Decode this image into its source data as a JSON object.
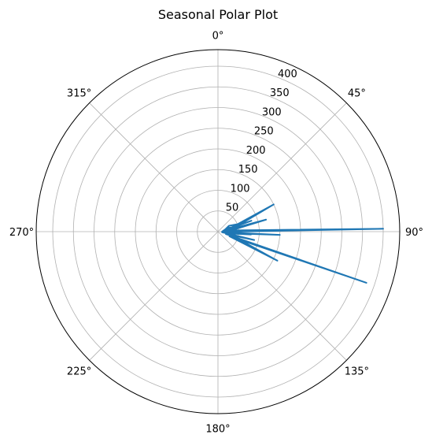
{
  "chart_data": {
    "type": "line",
    "projection": "polar",
    "title": "Seasonal Polar Plot",
    "theta_zero_location": "N",
    "theta_direction": "clockwise",
    "angle_ticks": [
      {
        "deg": 0,
        "label": "0°"
      },
      {
        "deg": 45,
        "label": "45°"
      },
      {
        "deg": 90,
        "label": "90°"
      },
      {
        "deg": 135,
        "label": "135°"
      },
      {
        "deg": 180,
        "label": "180°"
      },
      {
        "deg": 225,
        "label": "225°"
      },
      {
        "deg": 270,
        "label": "270°"
      },
      {
        "deg": 315,
        "label": "315°"
      }
    ],
    "radial_ticks": [
      {
        "value": 50,
        "label": "50"
      },
      {
        "value": 100,
        "label": "100"
      },
      {
        "value": 150,
        "label": "150"
      },
      {
        "value": 200,
        "label": "200"
      },
      {
        "value": 250,
        "label": "250"
      },
      {
        "value": 300,
        "label": "300"
      },
      {
        "value": 350,
        "label": "350"
      },
      {
        "value": 400,
        "label": "400"
      }
    ],
    "rlim": [
      0,
      440
    ],
    "radial_label_angle_deg": 22.5,
    "grid": true,
    "series": [
      {
        "color": "#1f77b4",
        "points": [
          {
            "theta": 90,
            "r": 10
          },
          {
            "theta": 68,
            "r": 25
          },
          {
            "theta": 75,
            "r": 40
          },
          {
            "theta": 80,
            "r": 15
          },
          {
            "theta": 62,
            "r": 30
          },
          {
            "theta": 70,
            "r": 55
          },
          {
            "theta": 77,
            "r": 20
          },
          {
            "theta": 72,
            "r": 85
          },
          {
            "theta": 85,
            "r": 12
          },
          {
            "theta": 76,
            "r": 120
          },
          {
            "theta": 88,
            "r": 25
          },
          {
            "theta": 64,
            "r": 150
          },
          {
            "theta": 82,
            "r": 20
          },
          {
            "theta": 89,
            "r": 400
          },
          {
            "theta": 92,
            "r": 15
          },
          {
            "theta": 96,
            "r": 55
          },
          {
            "theta": 100,
            "r": 20
          },
          {
            "theta": 93,
            "r": 150
          },
          {
            "theta": 98,
            "r": 10
          },
          {
            "theta": 103,
            "r": 90
          },
          {
            "theta": 107,
            "r": 20
          },
          {
            "theta": 109,
            "r": 380
          },
          {
            "theta": 112,
            "r": 30
          },
          {
            "theta": 116,
            "r": 160
          },
          {
            "theta": 100,
            "r": 25
          },
          {
            "theta": 95,
            "r": 80
          },
          {
            "theta": 90,
            "r": 10
          }
        ]
      }
    ]
  }
}
